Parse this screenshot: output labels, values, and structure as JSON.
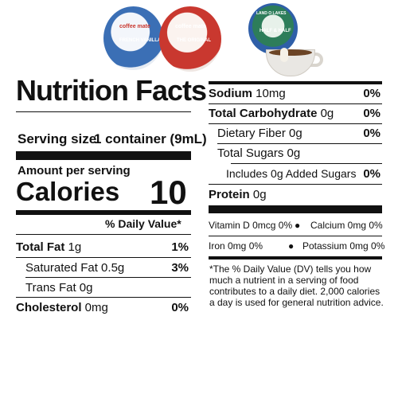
{
  "products": {
    "cup1_brand": "coffee mate",
    "cup1_flavor": "FRENCH VANILLA",
    "cup2_brand": "coffee mate",
    "cup2_flavor": "THE ORIGINAL",
    "cup3_brand": "LAND O LAKES",
    "cup3_flavor": "HALF & HALF"
  },
  "colors": {
    "text": "#111111",
    "background": "#ffffff",
    "blue_cup": "#3b6fb5",
    "red_cup": "#c9382f"
  },
  "left": {
    "title": "Nutrition Facts",
    "serving_label": "Serving size",
    "serving_value": "1 container (9mL)",
    "amount_label": "Amount per serving",
    "calories_label": "Calories",
    "calories_value": "10",
    "dv_header": "% Daily Value*",
    "rows": [
      {
        "label_bold": "Total Fat",
        "label_value": " 1g",
        "pct": "1%"
      },
      {
        "label_bold": "",
        "label_value": "Saturated Fat 0.5g",
        "pct": "3%"
      },
      {
        "label_bold": "",
        "label_value": "Trans Fat 0g",
        "pct": ""
      },
      {
        "label_bold": "Cholesterol",
        "label_value": " 0mg",
        "pct": "0%"
      }
    ]
  },
  "right": {
    "rows": [
      {
        "label_bold": "Sodium",
        "label_value": " 10mg",
        "pct": "0%"
      },
      {
        "label_bold": "Total Carbohydrate",
        "label_value": " 0g",
        "pct": "0%"
      },
      {
        "label_bold": "",
        "label_value": "Dietary Fiber 0g",
        "pct": "0%"
      },
      {
        "label_bold": "",
        "label_value": "Total Sugars 0g",
        "pct": ""
      },
      {
        "label_bold": "",
        "label_value": "Includes 0g Added Sugars",
        "pct": "0%"
      },
      {
        "label_bold": "Protein",
        "label_value": " 0g",
        "pct": ""
      }
    ],
    "micro": [
      {
        "left": "Vitamin D 0mcg 0%",
        "right": "Calcium 0mg 0%"
      },
      {
        "left": "Iron 0mg 0%",
        "right": "Potassium 0mg 0%"
      }
    ],
    "bullet": "●",
    "footnote": "*The % Daily Value (DV) tells you how much a nutrient in a serving of food contributes to a daily diet. 2,000 calories a day is used for general nutrition advice."
  }
}
